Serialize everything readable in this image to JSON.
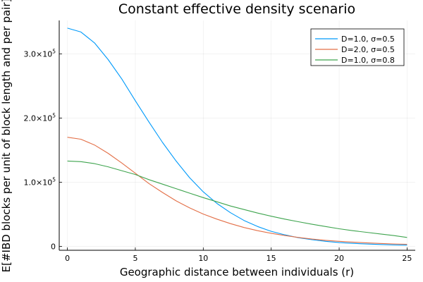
{
  "chart_data": {
    "type": "line",
    "title": "Constant effective density scenario",
    "xlabel": "Geographic distance between individuals (r)",
    "ylabel": "E[#IBD blocks per unit of block length and per pair]",
    "xlim": [
      -0.6,
      25.6
    ],
    "ylim": [
      -6000,
      352000
    ],
    "xticks": [
      0,
      5,
      10,
      15,
      20,
      25
    ],
    "xtick_labels": [
      "0",
      "5",
      "10",
      "15",
      "20",
      "25"
    ],
    "yticks": [
      0,
      100000,
      200000,
      300000
    ],
    "ytick_labels": [
      {
        "mantissa": "0",
        "base": "",
        "exp": ""
      },
      {
        "mantissa": "1.0×10",
        "base": "",
        "exp": "5"
      },
      {
        "mantissa": "2.0×10",
        "base": "",
        "exp": "5"
      },
      {
        "mantissa": "3.0×10",
        "base": "",
        "exp": "5"
      }
    ],
    "grid": true,
    "legend": "top-right",
    "x": [
      0,
      1,
      2,
      3,
      4,
      5,
      6,
      7,
      8,
      9,
      10,
      11,
      12,
      13,
      14,
      15,
      16,
      17,
      18,
      19,
      20,
      21,
      22,
      23,
      24,
      25
    ],
    "series": [
      {
        "name": "D=1.0, σ=0.5",
        "color": "#009AFA",
        "values": [
          340000,
          334000,
          317000,
          291000,
          261000,
          227000,
          194000,
          162000,
          133000,
          107000,
          85000,
          67000,
          52500,
          40500,
          31000,
          23500,
          18000,
          13500,
          10500,
          8000,
          6000,
          4800,
          3800,
          3000,
          2400,
          2000
        ]
      },
      {
        "name": "D=2.0, σ=0.5",
        "color": "#E36F47",
        "values": [
          170000,
          167000,
          158000,
          145000,
          130000,
          114000,
          98000,
          84000,
          71000,
          60000,
          50500,
          42500,
          35500,
          29500,
          24500,
          20500,
          17000,
          14000,
          11500,
          9500,
          8000,
          6700,
          5600,
          4700,
          3900,
          3300
        ]
      },
      {
        "name": "D=1.0, σ=0.8",
        "color": "#3EA44E",
        "values": [
          133000,
          132000,
          129000,
          124000,
          118000,
          112000,
          104000,
          97000,
          90000,
          83000,
          76000,
          69500,
          63000,
          57500,
          52000,
          47000,
          42500,
          38500,
          34500,
          31000,
          27500,
          24500,
          22000,
          19500,
          17000,
          14000
        ]
      }
    ]
  }
}
